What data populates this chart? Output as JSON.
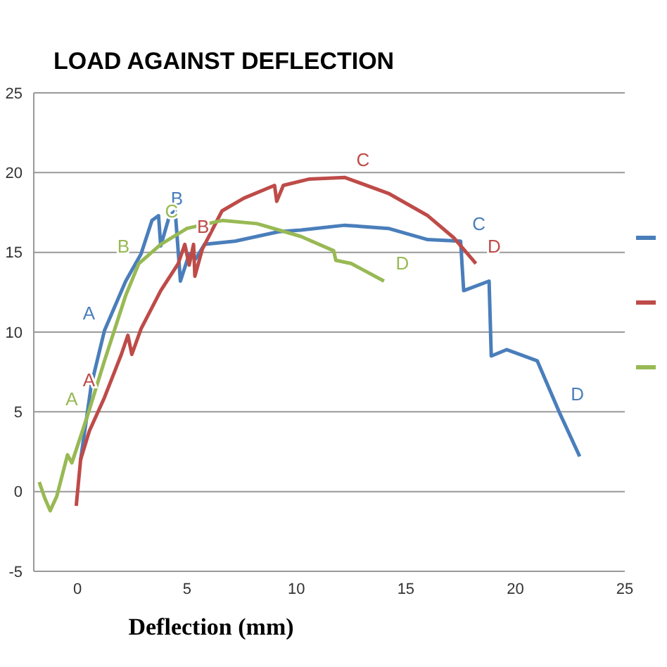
{
  "chart_data": {
    "type": "line",
    "title": "LOAD AGAINST DEFLECTION",
    "xlabel": "Deflection (mm)",
    "xlim": [
      -2,
      25
    ],
    "xticks": [
      0,
      5,
      10,
      15,
      20,
      25
    ],
    "ylim": [
      -5,
      25
    ],
    "yticks": [
      -5,
      0,
      5,
      10,
      15,
      20,
      25
    ],
    "grid": "y",
    "marker": "none",
    "line_style": "solid",
    "series": [
      {
        "color": "#4a7ebb",
        "x": [
          0.14,
          0.63,
          1.23,
          2.2,
          2.9,
          3.4,
          3.7,
          3.8,
          4.2,
          4.46,
          4.7,
          5.1,
          5.4,
          5.8,
          7.2,
          9.2,
          10.2,
          12.2,
          14.2,
          16,
          17.5,
          17.64,
          18.8,
          18.9,
          19.6,
          21,
          22,
          22.94
        ],
        "values": [
          2,
          6.7,
          10.1,
          13.2,
          14.9,
          17,
          17.3,
          15.4,
          17.3,
          17.6,
          13.2,
          14.9,
          14.6,
          15.5,
          15.7,
          16.3,
          16.4,
          16.7,
          16.5,
          15.8,
          15.7,
          12.6,
          13.2,
          8.5,
          8.9,
          8.2,
          5,
          2.2
        ],
        "value_labels": [
          null,
          null,
          "A",
          null,
          null,
          null,
          "B",
          null,
          null,
          null,
          null,
          null,
          null,
          null,
          null,
          null,
          null,
          null,
          null,
          null,
          "C",
          null,
          null,
          null,
          null,
          null,
          "D",
          null
        ]
      },
      {
        "color": "#be4b48",
        "x": [
          -0.06,
          0.14,
          0.54,
          1.23,
          2,
          2.3,
          2.48,
          2.9,
          3.8,
          4.6,
          4.9,
          5.1,
          5.3,
          5.36,
          5.7,
          6.6,
          7.6,
          9,
          9.1,
          9.4,
          10.6,
          12.2,
          14.2,
          16,
          17.2,
          18.2
        ],
        "values": [
          -0.9,
          2,
          3.8,
          5.9,
          8.6,
          9.8,
          8.6,
          10.2,
          12.6,
          14.3,
          15.5,
          14.2,
          15.5,
          13.5,
          15.2,
          17.6,
          18.4,
          19.2,
          18.2,
          19.2,
          19.6,
          19.7,
          18.7,
          17.3,
          15.9,
          14.3
        ],
        "value_labels": [
          null,
          null,
          null,
          "A",
          null,
          null,
          null,
          null,
          null,
          null,
          "B",
          null,
          null,
          null,
          null,
          null,
          null,
          null,
          null,
          null,
          null,
          "C",
          null,
          null,
          null,
          "D"
        ]
      },
      {
        "color": "#98b954",
        "x": [
          -1.75,
          -1.5,
          -1.25,
          -0.95,
          -0.46,
          -0.26,
          0.44,
          1.23,
          2.2,
          2.8,
          3.8,
          5,
          6.6,
          8.2,
          10.2,
          11.7,
          11.8,
          12.5,
          14
        ],
        "values": [
          0.6,
          -0.4,
          -1.2,
          -0.3,
          2.3,
          1.8,
          4.7,
          8.2,
          12.3,
          14.3,
          15.5,
          16.5,
          17,
          16.8,
          16,
          15.1,
          14.5,
          14.3,
          13.2
        ],
        "value_labels": [
          null,
          null,
          null,
          null,
          null,
          null,
          "A",
          null,
          null,
          "B",
          null,
          "C",
          null,
          null,
          null,
          null,
          null,
          null,
          "D"
        ]
      }
    ]
  }
}
